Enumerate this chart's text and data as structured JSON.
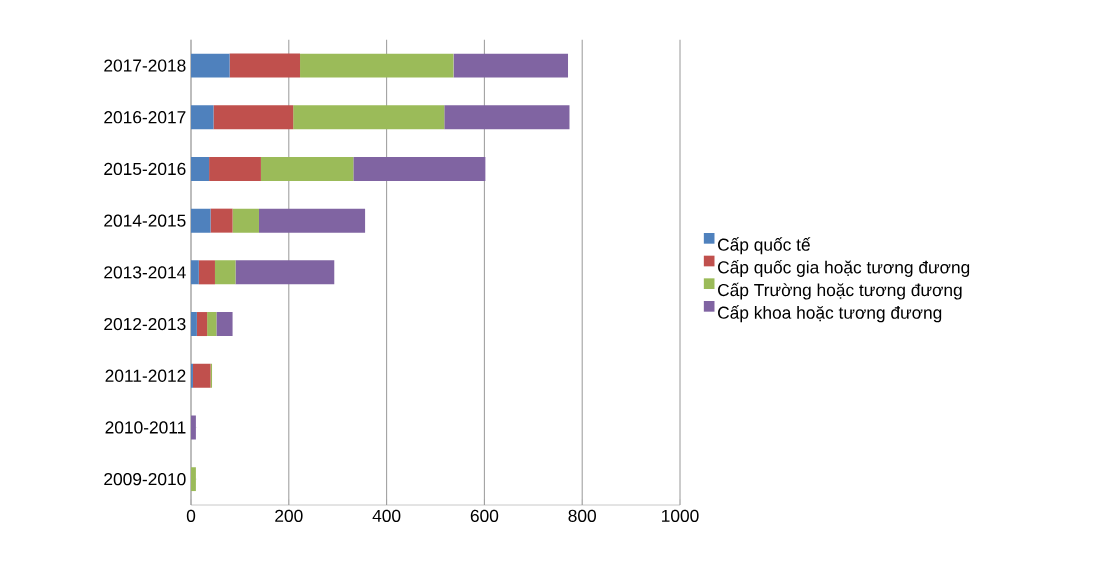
{
  "chart_data": {
    "type": "bar",
    "orientation": "horizontal",
    "stacked": true,
    "categories": [
      "2017-2018",
      "2016-2017",
      "2015-2016",
      "2014-2015",
      "2013-2014",
      "2012-2013",
      "2011-2012",
      "2010-2011",
      "2009-2010"
    ],
    "series": [
      {
        "name": "Cấp quốc tế",
        "color": "#4f81bd",
        "values": [
          79,
          46,
          37,
          40,
          16,
          12,
          4,
          0,
          0
        ]
      },
      {
        "name": "Cấp quốc gia hoặc tương đương",
        "color": "#c0504d",
        "values": [
          144,
          163,
          106,
          45,
          33,
          21,
          36,
          0,
          0
        ]
      },
      {
        "name": "Cấp Trường hoặc tương đương",
        "color": "#9bbb59",
        "values": [
          314,
          309,
          189,
          54,
          42,
          19,
          3,
          0,
          10
        ]
      },
      {
        "name": "Cấp khoa hoặc tương đương",
        "color": "#8064a2",
        "values": [
          234,
          256,
          270,
          217,
          202,
          33,
          0,
          10,
          0
        ]
      }
    ],
    "xlim": [
      0,
      1000
    ],
    "xticks": [
      0,
      200,
      400,
      600,
      800,
      1000
    ],
    "grid": "x",
    "legend": "right"
  }
}
